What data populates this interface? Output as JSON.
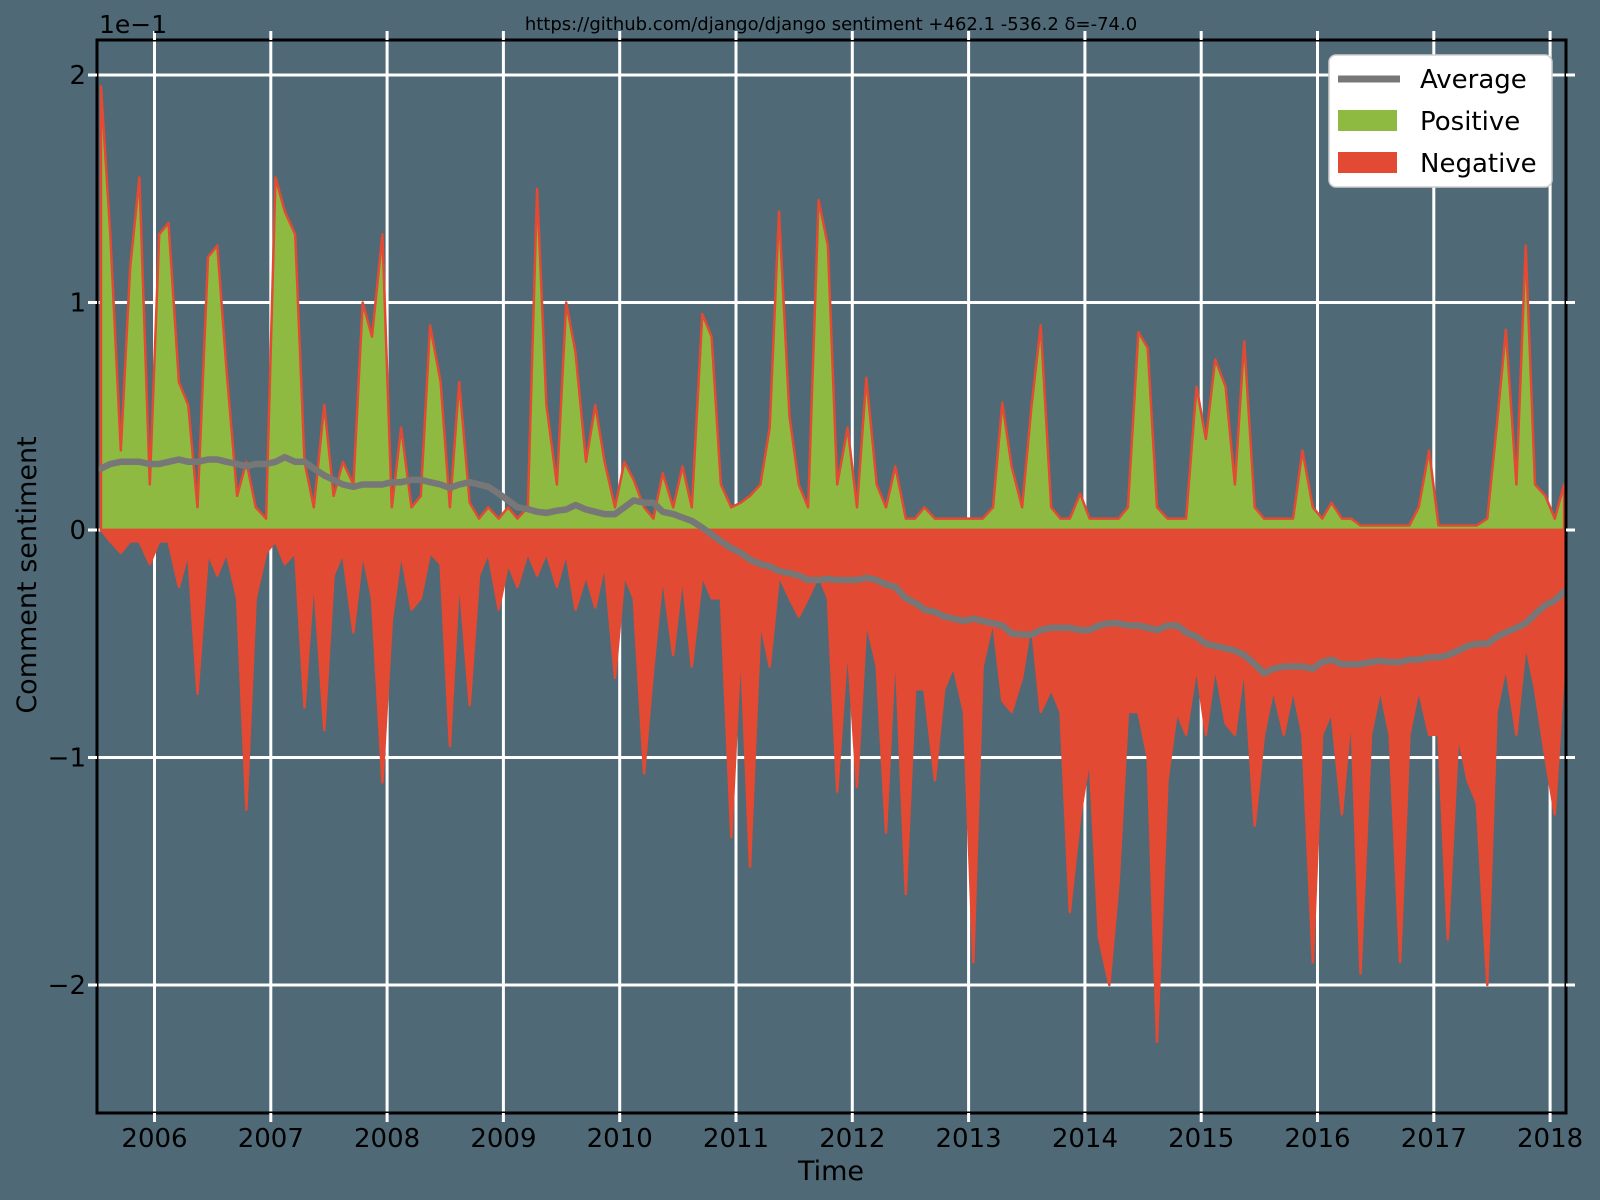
{
  "chart": {
    "title": "https://github.com/django/django sentiment +462.1 -536.2 δ=-74.0",
    "xlabel": "Time",
    "ylabel": "Comment sentiment",
    "y_offset": "1e−1",
    "legend": [
      {
        "label": "Average",
        "color": "#777777",
        "type": "line"
      },
      {
        "label": "Positive",
        "color": "#8EBA42",
        "type": "patch"
      },
      {
        "label": "Negative",
        "color": "#E24A33",
        "type": "patch"
      }
    ],
    "colors": {
      "background": "#4f6976",
      "grid": "#ffffff",
      "spine": "#000000",
      "tick_mark": "#ffffff",
      "text": "#000000",
      "legend_bg": "#ffffff",
      "legend_border": "#cfcfcf",
      "zero_line": "#E24A33"
    }
  },
  "chart_data": {
    "type": "area",
    "title": "https://github.com/django/django sentiment +462.1 -536.2 δ=-74.0",
    "xlabel": "Time",
    "ylabel": "Comment sentiment",
    "y_offset_multiplier": "1e−1",
    "positive_total": 462.1,
    "negative_total": -536.2,
    "delta": -74.0,
    "grid": true,
    "legend_position": "upper right",
    "xlim": [
      2005.51,
      2018.15
    ],
    "ylim": [
      -2.56,
      2.15
    ],
    "xticks": [
      2006,
      2007,
      2008,
      2009,
      2010,
      2011,
      2012,
      2013,
      2014,
      2015,
      2016,
      2017,
      2018
    ],
    "xtick_labels": [
      "2006",
      "2007",
      "2008",
      "2009",
      "2010",
      "2011",
      "2012",
      "2013",
      "2014",
      "2015",
      "2016",
      "2017",
      "2018"
    ],
    "yticks": [
      2,
      1,
      0,
      -1,
      -2
    ],
    "ytick_labels": [
      "2",
      "1",
      "0",
      "−1",
      "−2"
    ],
    "x": [
      2005.54,
      2005.62,
      2005.71,
      2005.79,
      2005.87,
      2005.96,
      2006.04,
      2006.12,
      2006.21,
      2006.29,
      2006.37,
      2006.46,
      2006.54,
      2006.62,
      2006.71,
      2006.79,
      2006.87,
      2006.96,
      2007.04,
      2007.12,
      2007.21,
      2007.29,
      2007.37,
      2007.46,
      2007.54,
      2007.62,
      2007.71,
      2007.79,
      2007.87,
      2007.96,
      2008.04,
      2008.12,
      2008.21,
      2008.29,
      2008.37,
      2008.46,
      2008.54,
      2008.62,
      2008.71,
      2008.79,
      2008.87,
      2008.96,
      2009.04,
      2009.12,
      2009.21,
      2009.29,
      2009.37,
      2009.46,
      2009.54,
      2009.62,
      2009.71,
      2009.79,
      2009.87,
      2009.96,
      2010.04,
      2010.12,
      2010.21,
      2010.29,
      2010.37,
      2010.46,
      2010.54,
      2010.62,
      2010.71,
      2010.79,
      2010.87,
      2010.96,
      2011.04,
      2011.12,
      2011.21,
      2011.29,
      2011.37,
      2011.46,
      2011.54,
      2011.62,
      2011.71,
      2011.79,
      2011.87,
      2011.96,
      2012.04,
      2012.12,
      2012.21,
      2012.29,
      2012.37,
      2012.46,
      2012.54,
      2012.62,
      2012.71,
      2012.79,
      2012.87,
      2012.96,
      2013.04,
      2013.12,
      2013.21,
      2013.29,
      2013.37,
      2013.46,
      2013.54,
      2013.62,
      2013.71,
      2013.79,
      2013.87,
      2013.96,
      2014.04,
      2014.12,
      2014.21,
      2014.29,
      2014.37,
      2014.46,
      2014.54,
      2014.62,
      2014.71,
      2014.79,
      2014.87,
      2014.96,
      2015.04,
      2015.12,
      2015.21,
      2015.29,
      2015.37,
      2015.46,
      2015.54,
      2015.62,
      2015.71,
      2015.79,
      2015.87,
      2015.96,
      2016.04,
      2016.12,
      2016.21,
      2016.29,
      2016.37,
      2016.46,
      2016.54,
      2016.62,
      2016.71,
      2016.79,
      2016.87,
      2016.96,
      2017.04,
      2017.12,
      2017.21,
      2017.29,
      2017.37,
      2017.46,
      2017.54,
      2017.62,
      2017.71,
      2017.79,
      2017.87,
      2017.96,
      2018.04,
      2018.12
    ],
    "series": [
      {
        "name": "Positive",
        "type": "area",
        "color": "#8EBA42",
        "values": [
          1.95,
          1.3,
          0.35,
          1.15,
          1.55,
          0.2,
          1.3,
          1.35,
          0.65,
          0.55,
          0.1,
          1.2,
          1.25,
          0.7,
          0.15,
          0.3,
          0.1,
          0.05,
          1.55,
          1.4,
          1.3,
          0.3,
          0.1,
          0.55,
          0.15,
          0.3,
          0.2,
          1.0,
          0.85,
          1.3,
          0.1,
          0.45,
          0.1,
          0.15,
          0.9,
          0.65,
          0.1,
          0.65,
          0.12,
          0.05,
          0.1,
          0.05,
          0.1,
          0.05,
          0.1,
          1.5,
          0.55,
          0.2,
          1.0,
          0.78,
          0.3,
          0.55,
          0.3,
          0.1,
          0.3,
          0.22,
          0.1,
          0.05,
          0.25,
          0.1,
          0.28,
          0.1,
          0.95,
          0.85,
          0.2,
          0.1,
          0.12,
          0.15,
          0.2,
          0.45,
          1.4,
          0.5,
          0.2,
          0.1,
          1.45,
          1.25,
          0.2,
          0.45,
          0.1,
          0.67,
          0.2,
          0.1,
          0.28,
          0.05,
          0.05,
          0.1,
          0.05,
          0.05,
          0.05,
          0.05,
          0.05,
          0.05,
          0.1,
          0.56,
          0.28,
          0.1,
          0.54,
          0.9,
          0.1,
          0.05,
          0.05,
          0.16,
          0.05,
          0.05,
          0.05,
          0.05,
          0.1,
          0.87,
          0.8,
          0.1,
          0.05,
          0.05,
          0.05,
          0.63,
          0.4,
          0.75,
          0.63,
          0.2,
          0.83,
          0.1,
          0.05,
          0.05,
          0.05,
          0.05,
          0.35,
          0.1,
          0.05,
          0.12,
          0.05,
          0.05,
          0.02,
          0.02,
          0.02,
          0.02,
          0.02,
          0.02,
          0.1,
          0.35,
          0.02,
          0.02,
          0.02,
          0.02,
          0.02,
          0.05,
          0.45,
          0.88,
          0.2,
          1.25,
          0.2,
          0.15,
          0.05,
          0.2
        ]
      },
      {
        "name": "Negative",
        "type": "area",
        "color": "#E24A33",
        "values": [
          0,
          -0.05,
          -0.1,
          -0.05,
          -0.05,
          -0.15,
          -0.05,
          -0.05,
          -0.25,
          -0.1,
          -0.72,
          -0.1,
          -0.2,
          -0.1,
          -0.3,
          -1.23,
          -0.3,
          -0.1,
          -0.05,
          -0.15,
          -0.1,
          -0.78,
          -0.2,
          -0.88,
          -0.2,
          -0.1,
          -0.45,
          -0.1,
          -0.3,
          -1.11,
          -0.4,
          -0.1,
          -0.35,
          -0.3,
          -0.1,
          -0.15,
          -0.95,
          -0.2,
          -0.77,
          -0.2,
          -0.1,
          -0.35,
          -0.15,
          -0.25,
          -0.1,
          -0.2,
          -0.1,
          -0.25,
          -0.1,
          -0.35,
          -0.2,
          -0.34,
          -0.15,
          -0.65,
          -0.2,
          -0.3,
          -1.07,
          -0.6,
          -0.2,
          -0.55,
          -0.2,
          -0.6,
          -0.2,
          -0.3,
          -0.3,
          -1.35,
          -0.5,
          -1.48,
          -0.4,
          -0.6,
          -0.2,
          -0.3,
          -0.38,
          -0.3,
          -0.2,
          -0.3,
          -1.15,
          -0.5,
          -1.13,
          -0.4,
          -0.6,
          -1.33,
          -0.5,
          -1.6,
          -0.7,
          -0.7,
          -1.1,
          -0.7,
          -0.6,
          -0.8,
          -1.9,
          -0.6,
          -0.4,
          -0.75,
          -0.8,
          -0.65,
          -0.4,
          -0.8,
          -0.7,
          -0.8,
          -1.68,
          -1.26,
          -1.0,
          -1.79,
          -2.0,
          -1.55,
          -0.8,
          -0.8,
          -1.0,
          -2.25,
          -1.1,
          -0.8,
          -0.9,
          -0.6,
          -0.9,
          -0.6,
          -0.85,
          -0.9,
          -0.6,
          -1.3,
          -0.9,
          -0.7,
          -0.9,
          -0.7,
          -0.9,
          -1.9,
          -0.9,
          -0.8,
          -1.25,
          -0.8,
          -1.95,
          -0.9,
          -0.7,
          -0.9,
          -1.9,
          -0.9,
          -0.7,
          -0.9,
          -0.9,
          -1.8,
          -0.9,
          -1.1,
          -1.2,
          -2.0,
          -0.8,
          -0.6,
          -0.9,
          -0.5,
          -0.7,
          -1.0,
          -1.25,
          -0.6
        ]
      },
      {
        "name": "Average",
        "type": "line",
        "color": "#777777",
        "values": [
          0.27,
          0.29,
          0.3,
          0.3,
          0.3,
          0.29,
          0.29,
          0.3,
          0.31,
          0.3,
          0.3,
          0.31,
          0.31,
          0.3,
          0.29,
          0.28,
          0.29,
          0.29,
          0.3,
          0.32,
          0.3,
          0.3,
          0.27,
          0.24,
          0.22,
          0.2,
          0.19,
          0.2,
          0.2,
          0.2,
          0.21,
          0.21,
          0.22,
          0.22,
          0.21,
          0.2,
          0.185,
          0.2,
          0.21,
          0.2,
          0.19,
          0.16,
          0.13,
          0.1,
          0.092,
          0.08,
          0.075,
          0.085,
          0.09,
          0.11,
          0.09,
          0.08,
          0.07,
          0.07,
          0.1,
          0.13,
          0.12,
          0.12,
          0.08,
          0.07,
          0.055,
          0.04,
          0.01,
          -0.02,
          -0.05,
          -0.08,
          -0.1,
          -0.13,
          -0.15,
          -0.16,
          -0.18,
          -0.19,
          -0.2,
          -0.22,
          -0.22,
          -0.215,
          -0.22,
          -0.22,
          -0.22,
          -0.21,
          -0.22,
          -0.24,
          -0.25,
          -0.3,
          -0.32,
          -0.35,
          -0.36,
          -0.38,
          -0.39,
          -0.4,
          -0.39,
          -0.4,
          -0.41,
          -0.42,
          -0.455,
          -0.46,
          -0.46,
          -0.44,
          -0.43,
          -0.43,
          -0.43,
          -0.44,
          -0.44,
          -0.42,
          -0.41,
          -0.41,
          -0.42,
          -0.42,
          -0.43,
          -0.44,
          -0.42,
          -0.42,
          -0.45,
          -0.47,
          -0.5,
          -0.51,
          -0.52,
          -0.53,
          -0.55,
          -0.59,
          -0.63,
          -0.61,
          -0.6,
          -0.6,
          -0.6,
          -0.61,
          -0.58,
          -0.57,
          -0.59,
          -0.59,
          -0.59,
          -0.58,
          -0.575,
          -0.58,
          -0.58,
          -0.57,
          -0.57,
          -0.56,
          -0.56,
          -0.55,
          -0.53,
          -0.51,
          -0.5,
          -0.5,
          -0.47,
          -0.45,
          -0.43,
          -0.41,
          -0.37,
          -0.33,
          -0.31,
          -0.27
        ]
      }
    ]
  }
}
